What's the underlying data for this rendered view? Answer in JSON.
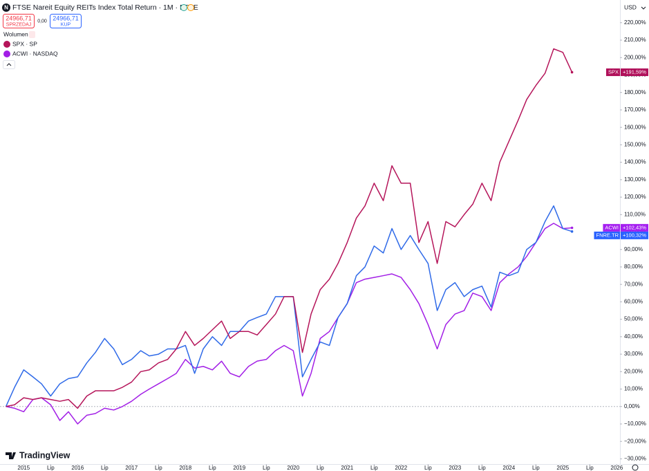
{
  "header": {
    "title": "FTSE Nareit Equity REITs Index Total Return · 1M · FTSE",
    "sell_price": "24966,71",
    "sell_label": "SPRZEDAJ",
    "spread": "0,00",
    "buy_price": "24966,71",
    "buy_label": "KUP",
    "volume_label": "Wolumen",
    "currency": "USD",
    "logo": "TradingView"
  },
  "chart_data": {
    "type": "line",
    "x": [
      2014.67,
      2014.83,
      2015,
      2015.17,
      2015.33,
      2015.5,
      2015.67,
      2015.83,
      2016,
      2016.17,
      2016.33,
      2016.5,
      2016.67,
      2016.83,
      2017,
      2017.17,
      2017.33,
      2017.5,
      2017.67,
      2017.83,
      2018,
      2018.17,
      2018.33,
      2018.5,
      2018.67,
      2018.83,
      2019,
      2019.17,
      2019.33,
      2019.5,
      2019.67,
      2019.83,
      2020,
      2020.17,
      2020.33,
      2020.5,
      2020.67,
      2020.83,
      2021,
      2021.17,
      2021.33,
      2021.5,
      2021.67,
      2021.83,
      2022,
      2022.17,
      2022.33,
      2022.5,
      2022.67,
      2022.83,
      2023,
      2023.17,
      2023.33,
      2023.5,
      2023.67,
      2023.83,
      2024,
      2024.17,
      2024.33,
      2024.5,
      2024.67,
      2024.83,
      2025,
      2025.17
    ],
    "series": [
      {
        "name": "FNRE.TR",
        "color": "#2f6ae8",
        "tag_color": "#2962ff",
        "values": [
          0,
          11,
          21,
          17,
          13,
          6,
          13,
          16,
          17,
          25,
          31,
          39,
          33,
          24,
          27,
          32,
          29,
          30,
          33,
          33,
          35,
          19,
          33,
          40,
          35,
          43,
          43,
          49,
          51,
          53,
          63,
          63,
          63,
          17,
          27,
          37,
          35,
          51,
          59,
          75,
          80,
          92,
          88,
          102,
          90,
          98,
          90,
          82,
          55,
          67,
          71,
          63,
          67,
          69,
          57,
          77,
          75,
          77,
          90,
          94,
          106,
          115,
          102,
          100.32
        ],
        "value_labels": [
          null,
          null,
          null,
          null,
          null,
          null,
          null,
          null,
          null,
          null,
          null,
          null,
          null,
          null,
          null,
          null,
          null,
          null,
          null,
          null,
          null,
          null,
          null,
          null,
          null,
          null,
          null,
          null,
          null,
          null,
          null,
          null,
          null,
          null,
          null,
          null,
          null,
          null,
          null,
          null,
          null,
          null,
          null,
          null,
          null,
          null,
          null,
          null,
          null,
          null,
          null,
          null,
          null,
          null,
          null,
          null,
          null,
          null,
          null,
          null,
          null,
          null,
          null,
          "+100,32%"
        ]
      },
      {
        "name": "SPX",
        "legend": "SPX · SP",
        "color": "#b5155a",
        "tag_color": "#b0105a",
        "values": [
          0,
          1,
          5,
          4,
          5,
          4,
          3,
          4,
          -1,
          6,
          9,
          9,
          9,
          11,
          14,
          20,
          21,
          25,
          27,
          33,
          43,
          35,
          39,
          44,
          49,
          39,
          43,
          43,
          41,
          47,
          53,
          63,
          63,
          31,
          53,
          67,
          73,
          82,
          94,
          108,
          115,
          128,
          118,
          138,
          128,
          128,
          94,
          106,
          82,
          106,
          103,
          110,
          116,
          128,
          118,
          140,
          152,
          164,
          176,
          184,
          191,
          205,
          203,
          191.59
        ],
        "value_labels": [
          null,
          null,
          null,
          null,
          null,
          null,
          null,
          null,
          null,
          null,
          null,
          null,
          null,
          null,
          null,
          null,
          null,
          null,
          null,
          null,
          null,
          null,
          null,
          null,
          null,
          null,
          null,
          null,
          null,
          null,
          null,
          null,
          null,
          null,
          null,
          null,
          null,
          null,
          null,
          null,
          null,
          null,
          null,
          null,
          null,
          null,
          null,
          null,
          null,
          null,
          null,
          null,
          null,
          null,
          null,
          null,
          null,
          null,
          null,
          null,
          null,
          null,
          null,
          "+191,59%"
        ]
      },
      {
        "name": "ACWI",
        "legend": "ACWI · NASDAQ",
        "color": "#a21ee6",
        "tag_color": "#a51ff0",
        "values": [
          0,
          -1,
          -3,
          4,
          5,
          1,
          -8,
          -3,
          -10,
          -5,
          -4,
          -1,
          -2,
          0,
          3,
          7,
          10,
          13,
          16,
          19,
          27,
          22,
          23,
          21,
          26,
          19,
          17,
          23,
          26,
          27,
          32,
          35,
          32,
          6,
          19,
          39,
          43,
          51,
          59,
          71,
          73,
          74,
          75,
          76,
          74,
          67,
          59,
          47,
          33,
          47,
          53,
          55,
          65,
          63,
          55,
          71,
          76,
          80,
          86,
          94,
          102,
          105,
          102,
          102.43
        ],
        "value_labels": [
          null,
          null,
          null,
          null,
          null,
          null,
          null,
          null,
          null,
          null,
          null,
          null,
          null,
          null,
          null,
          null,
          null,
          null,
          null,
          null,
          null,
          null,
          null,
          null,
          null,
          null,
          null,
          null,
          null,
          null,
          null,
          null,
          null,
          null,
          null,
          null,
          null,
          null,
          null,
          null,
          null,
          null,
          null,
          null,
          null,
          null,
          null,
          null,
          null,
          null,
          null,
          null,
          null,
          null,
          null,
          null,
          null,
          null,
          null,
          null,
          null,
          null,
          null,
          "+102,43%"
        ]
      }
    ],
    "xlim": [
      2014.56,
      2026.06
    ],
    "xticks": [
      2015,
      {
        "value": 2015.5,
        "label": "Lip"
      },
      2016,
      {
        "value": 2016.5,
        "label": "Lip"
      },
      2017,
      {
        "value": 2017.5,
        "label": "Lip"
      },
      2018,
      {
        "value": 2018.5,
        "label": "Lip"
      },
      2019,
      {
        "value": 2019.5,
        "label": "Lip"
      },
      2020,
      {
        "value": 2020.5,
        "label": "Lip"
      },
      2021,
      {
        "value": 2021.5,
        "label": "Lip"
      },
      2022,
      {
        "value": 2022.5,
        "label": "Lip"
      },
      2023,
      {
        "value": 2023.5,
        "label": "Lip"
      },
      2024,
      {
        "value": 2024.5,
        "label": "Lip"
      },
      2025,
      {
        "value": 2025.5,
        "label": "Lip"
      },
      2026
    ],
    "ylim": [
      -33,
      233
    ],
    "yticks": [
      {
        "value": 220,
        "label": "220,00%"
      },
      {
        "value": 210,
        "label": "210,00%"
      },
      {
        "value": 200,
        "label": "200,00%"
      },
      {
        "value": 190,
        "label": "190,00%"
      },
      {
        "value": 180,
        "label": "180,00%"
      },
      {
        "value": 170,
        "label": "170,00%"
      },
      {
        "value": 160,
        "label": "160,00%"
      },
      {
        "value": 150,
        "label": "150,00%"
      },
      {
        "value": 140,
        "label": "140,00%"
      },
      {
        "value": 130,
        "label": "130,00%"
      },
      {
        "value": 120,
        "label": "120,00%"
      },
      {
        "value": 110,
        "label": "110,00%"
      },
      {
        "value": 100,
        "label": "100,00%"
      },
      {
        "value": 90,
        "label": "90,00%"
      },
      {
        "value": 80,
        "label": "80,00%"
      },
      {
        "value": 70,
        "label": "70,00%"
      },
      {
        "value": 60,
        "label": "60,00%"
      },
      {
        "value": 50,
        "label": "50,00%"
      },
      {
        "value": 40,
        "label": "40,00%"
      },
      {
        "value": 30,
        "label": "30,00%"
      },
      {
        "value": 20,
        "label": "20,00%"
      },
      {
        "value": 10,
        "label": "10,00%"
      },
      {
        "value": 0,
        "label": "0,00%"
      },
      {
        "value": -10,
        "label": "−10,00%"
      },
      {
        "value": -20,
        "label": "−20,00%"
      },
      {
        "value": -30,
        "label": "−30,00%"
      }
    ],
    "grid": false
  }
}
